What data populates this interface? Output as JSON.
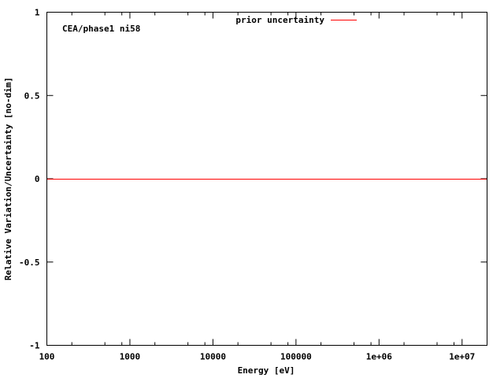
{
  "chart_data": {
    "type": "line",
    "title": "",
    "annotation": "CEA/phase1 ni58",
    "xlabel": "Energy [eV]",
    "ylabel": "Relative Variation/Uncertainty [no-dim]",
    "xscale": "log",
    "xlim": [
      100,
      20000000
    ],
    "ylim": [
      -1,
      1
    ],
    "xticks": [
      100,
      1000,
      10000,
      100000,
      1000000,
      10000000
    ],
    "xtick_labels": [
      "100",
      "1000",
      "10000",
      "100000",
      "1e+06",
      "1e+07"
    ],
    "yticks": [
      -1,
      -0.5,
      0,
      0.5,
      1
    ],
    "ytick_labels": [
      "-1",
      "-0.5",
      "0",
      "0.5",
      "1"
    ],
    "grid": false,
    "legend_position": "top-center",
    "series": [
      {
        "name": "prior uncertainty",
        "color": "#ff0000",
        "x": [
          100,
          20000000
        ],
        "y": [
          0,
          0
        ]
      }
    ]
  }
}
